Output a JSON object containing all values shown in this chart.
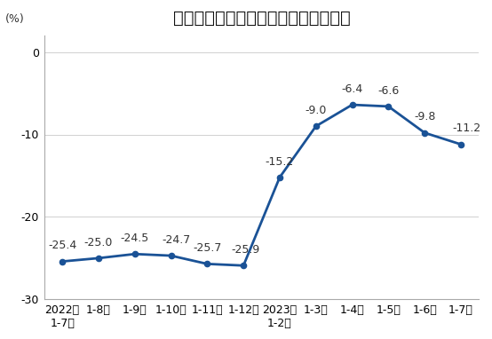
{
  "title": "全国房地产开发企业本年到位资金增速",
  "ylabel": "(%)",
  "x_labels": [
    "2022年\n1-7月",
    "1-8月",
    "1-9月",
    "1-10月",
    "1-11月",
    "1-12月",
    "2023年\n1-2月",
    "1-3月",
    "1-4月",
    "1-5月",
    "1-6月",
    "1-7月"
  ],
  "y_values": [
    -25.4,
    -25.0,
    -24.5,
    -24.7,
    -25.7,
    -25.9,
    -15.2,
    -9.0,
    -6.4,
    -6.6,
    -9.8,
    -11.2
  ],
  "annotations": [
    "-25.4",
    "-25.0",
    "-24.5",
    "-24.7",
    "-25.7",
    "-25.9",
    "-15.2",
    "-9.0",
    "-6.4",
    "-6.6",
    "-9.8",
    "-11.2"
  ],
  "ann_dx": [
    0,
    0,
    0,
    0.15,
    0,
    0.05,
    0,
    0,
    0,
    0,
    0,
    0.15
  ],
  "ann_dy": [
    1.2,
    1.2,
    1.2,
    1.2,
    1.2,
    1.2,
    1.2,
    1.2,
    1.2,
    1.2,
    1.2,
    1.2
  ],
  "line_color": "#1a5296",
  "marker_color": "#1a5296",
  "background_color": "#ffffff",
  "plot_bg_color": "#ffffff",
  "ylim": [
    -30,
    2
  ],
  "yticks": [
    0,
    -10,
    -20,
    -30
  ],
  "title_fontsize": 14,
  "tick_fontsize": 9,
  "annotation_fontsize": 9,
  "ylabel_fontsize": 9,
  "grid_color": "#d0d0d0",
  "spine_color": "#aaaaaa",
  "text_color": "#333333"
}
